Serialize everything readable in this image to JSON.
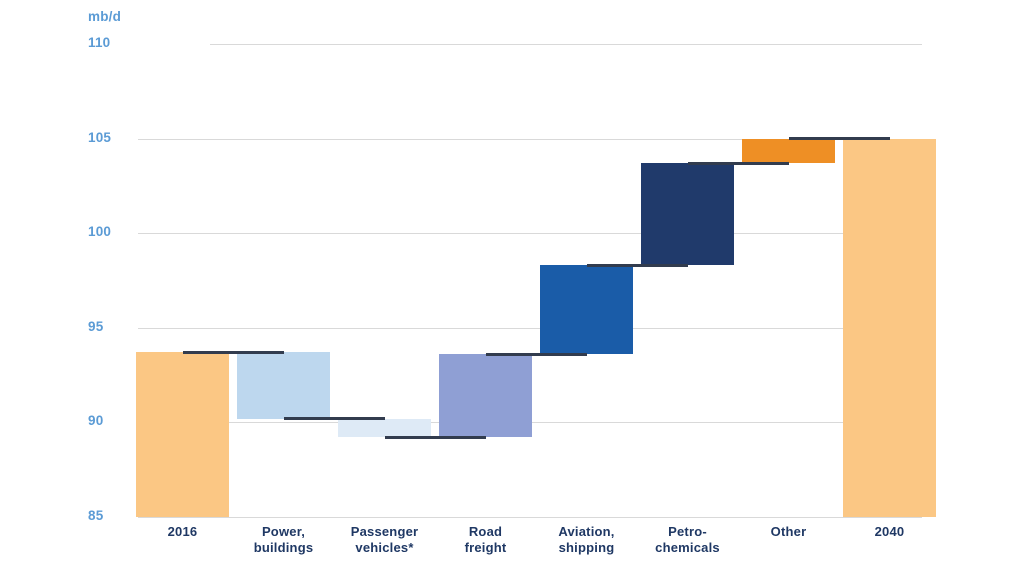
{
  "chart_data": {
    "type": "waterfall",
    "title": "",
    "unit": "mb/d",
    "ylabel": "mb/d",
    "xlabel": "",
    "ylim": [
      85,
      110
    ],
    "yticks": [
      85,
      90,
      95,
      100,
      105,
      110
    ],
    "grid": true,
    "baseline": 85,
    "legend": "none",
    "categories": [
      "2016",
      "Power, buildings",
      "Passenger vehicles*",
      "Road freight",
      "Aviation, shipping",
      "Petro-chemicals",
      "Other",
      "2040"
    ],
    "bars": [
      {
        "id": "2016",
        "lines": [
          "2016"
        ],
        "role": "total",
        "from": 85.0,
        "to": 93.7,
        "value": 93.7,
        "color": "#FBC784"
      },
      {
        "id": "power-buildings",
        "lines": [
          "Power,",
          "buildings"
        ],
        "role": "decrease",
        "from": 93.7,
        "to": 90.2,
        "change": -3.5,
        "color": "#BDD7EE"
      },
      {
        "id": "passenger-vehicles",
        "lines": [
          "Passenger",
          "vehicles*"
        ],
        "role": "decrease",
        "from": 90.2,
        "to": 89.2,
        "change": -1.0,
        "color": "#DEEAF6"
      },
      {
        "id": "road-freight",
        "lines": [
          "Road",
          "freight"
        ],
        "role": "increase",
        "from": 89.2,
        "to": 93.6,
        "change": 4.4,
        "color": "#8F9FD4"
      },
      {
        "id": "aviation-shipping",
        "lines": [
          "Aviation,",
          "shipping"
        ],
        "role": "increase",
        "from": 93.6,
        "to": 98.3,
        "change": 4.7,
        "color": "#1A5CA8"
      },
      {
        "id": "petro-chemicals",
        "lines": [
          "Petro-",
          "chemicals"
        ],
        "role": "increase",
        "from": 98.3,
        "to": 103.7,
        "change": 5.4,
        "color": "#203A6B"
      },
      {
        "id": "other",
        "lines": [
          "Other"
        ],
        "role": "increase",
        "from": 103.7,
        "to": 105.0,
        "change": 1.3,
        "color": "#EE8F25"
      },
      {
        "id": "2040",
        "lines": [
          "2040"
        ],
        "role": "total",
        "from": 85.0,
        "to": 105.0,
        "value": 105.0,
        "color": "#FBC784"
      }
    ]
  },
  "colors": {
    "background": "#FFFFFF",
    "axis_label": "#5B9BD5",
    "category_label": "#1F3864",
    "gridline": "#D9D9D9",
    "connector": "#323C4E"
  }
}
